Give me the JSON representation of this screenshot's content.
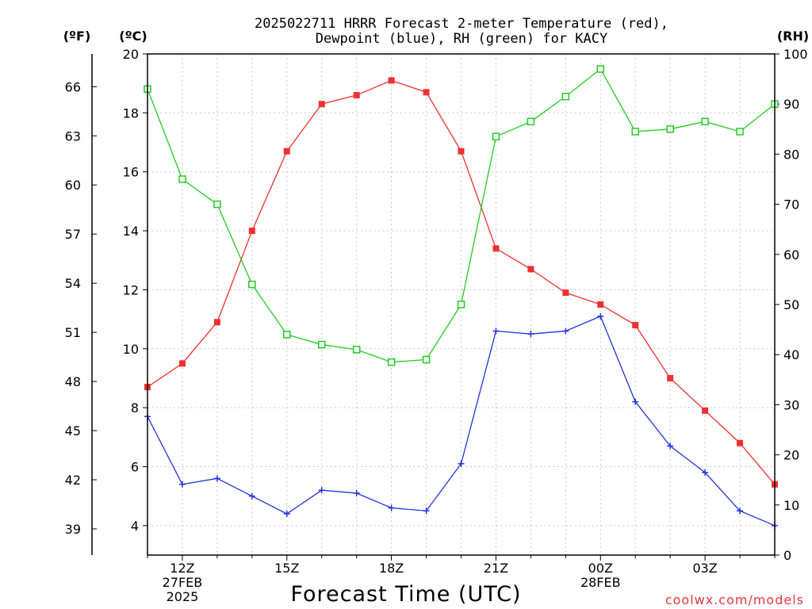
{
  "title_line1": "2025022711 HRRR Forecast 2-meter Temperature (red),",
  "title_line2": "Dewpoint (blue), RH (green) for KACY",
  "unit_f": "(ºF)",
  "unit_c": "(ºC)",
  "unit_rh": "(RH)",
  "xlabel": "Forecast Time (UTC)",
  "credit": "coolwx.com/models",
  "colors": {
    "temperature": "#ee3030",
    "dewpoint": "#2233dd",
    "rh": "#22cc22",
    "grid": "#bbbbbb",
    "frame": "#000000"
  },
  "chart_data": {
    "type": "line",
    "hours": [
      11,
      12,
      13,
      14,
      15,
      16,
      17,
      18,
      19,
      20,
      21,
      22,
      23,
      24,
      25,
      26,
      27,
      28,
      29
    ],
    "x_ticks": [
      {
        "hour": 12,
        "lines": [
          "12Z",
          "27FEB",
          "2025"
        ]
      },
      {
        "hour": 15,
        "lines": [
          "15Z"
        ]
      },
      {
        "hour": 18,
        "lines": [
          "18Z"
        ]
      },
      {
        "hour": 21,
        "lines": [
          "21Z"
        ]
      },
      {
        "hour": 24,
        "lines": [
          "00Z",
          "28FEB"
        ]
      },
      {
        "hour": 27,
        "lines": [
          "03Z"
        ]
      }
    ],
    "left_axis_c": {
      "ylim": [
        3,
        20
      ],
      "ticks": [
        4,
        6,
        8,
        10,
        12,
        14,
        16,
        18,
        20
      ]
    },
    "left_axis_f": {
      "ticks": [
        39,
        42,
        45,
        48,
        51,
        54,
        57,
        60,
        63,
        66
      ]
    },
    "right_axis_rh": {
      "ylim": [
        0,
        100
      ],
      "ticks": [
        0,
        10,
        20,
        30,
        40,
        50,
        60,
        70,
        80,
        90,
        100
      ]
    },
    "series": [
      {
        "name": "Temperature",
        "axis": "c",
        "marker": "filled-square",
        "values": [
          8.7,
          9.5,
          10.9,
          14.0,
          16.7,
          18.3,
          18.6,
          19.1,
          18.7,
          16.7,
          13.4,
          12.7,
          11.9,
          11.5,
          10.8,
          9.0,
          7.9,
          6.8,
          5.4
        ]
      },
      {
        "name": "Dewpoint",
        "axis": "c",
        "marker": "plus",
        "values": [
          7.7,
          5.4,
          5.6,
          5.0,
          4.4,
          5.2,
          5.1,
          4.6,
          4.5,
          6.1,
          10.6,
          10.5,
          10.6,
          11.1,
          8.2,
          6.7,
          5.8,
          4.5,
          4.0
        ]
      },
      {
        "name": "RH",
        "axis": "rh",
        "marker": "open-square",
        "values": [
          93,
          75,
          70,
          54,
          44,
          42,
          41,
          38.5,
          39,
          50,
          83.5,
          86.5,
          91.5,
          97,
          84.5,
          85,
          86.5,
          84.5,
          90
        ]
      }
    ]
  }
}
